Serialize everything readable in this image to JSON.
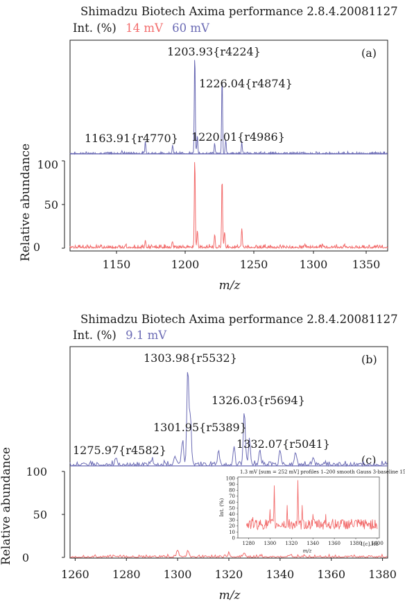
{
  "colors": {
    "blue": "#6a6ab4",
    "red": "#f26b6b",
    "axis": "#1a1a1a"
  },
  "panels": [
    {
      "header": "Shimadzu Biotech Axima performance 2.8.4.20081127",
      "int_label": "Int. (%)",
      "int_values": [
        {
          "text": "14 mV",
          "color": "red"
        },
        {
          "text": "60 mV",
          "color": "blue"
        }
      ],
      "panel_label": "(a)",
      "ylabel": "Relative abundance",
      "xlabel": "m/z",
      "ticks_y": [
        "100",
        "50",
        "0"
      ],
      "ticks_x": [
        "1150",
        "1200",
        "1250",
        "1300",
        "1350"
      ],
      "peak_labels": [
        "1203.93{r4224}",
        "1226.04{r4874}",
        "1163.91{r4770}",
        "1220.01{r4986}"
      ]
    },
    {
      "header": "Shimadzu Biotech Axima performance 2.8.4.20081127",
      "int_label": "Int. (%)",
      "int_values": [
        {
          "text": "9.1 mV",
          "color": "blue"
        }
      ],
      "panel_label": "(b)",
      "panel_label2": "(c)",
      "ylabel": "Relative abundance",
      "xlabel": "m/z",
      "ticks_y": [
        "100",
        "50",
        "0"
      ],
      "ticks_x": [
        "1260",
        "1280",
        "1300",
        "1320",
        "1340",
        "1360",
        "1380"
      ],
      "peak_labels": [
        "1303.98{r5532}",
        "1326.03{r5694}",
        "1301.95{r5389}",
        "1275.97{r4582}",
        "1332.07{r5041}"
      ],
      "inset": {
        "caption": "1.3 mV [sum = 252 mV] profiles 1–200 smooth Gauss 3-baseline 15",
        "ylabel": "Int. (%)",
        "xlabel": "m/z",
        "ticks_y": [
          "100",
          "90",
          "80",
          "70",
          "60",
          "50",
          "40",
          "30",
          "20",
          "10",
          "0"
        ],
        "ticks_x": [
          "1280",
          "1300",
          "1320",
          "1340",
          "1360",
          "1380",
          "1400"
        ],
        "footer": "1[c].H3"
      }
    }
  ],
  "chart_data": [
    {
      "type": "line",
      "title": "Shimadzu Biotech Axima performance 2.8.4.20081127",
      "xlabel": "m/z",
      "ylabel": "Relative abundance",
      "xlim": [
        1103,
        1360
      ],
      "ylim": [
        0,
        100
      ],
      "series": [
        {
          "peaks": [
            [
              1145,
              3
            ],
            [
              1163.91,
              12
            ],
            [
              1186,
              9
            ],
            [
              1203.93,
              100
            ],
            [
              1206,
              18
            ],
            [
              1220.01,
              10
            ],
            [
              1226.04,
              75
            ],
            [
              1229,
              14
            ],
            [
              1242,
              11
            ]
          ]
        },
        {
          "peaks": [
            [
              1148,
              4
            ],
            [
              1163.9,
              8
            ],
            [
              1186,
              7
            ],
            [
              1203.93,
              100
            ],
            [
              1206,
              20
            ],
            [
              1220,
              14
            ],
            [
              1226.04,
              80
            ],
            [
              1228,
              18
            ],
            [
              1242,
              22
            ],
            [
              1293,
              4
            ],
            [
              1325,
              4
            ]
          ]
        }
      ]
    },
    {
      "type": "line",
      "title": "Shimadzu Biotech Axima performance 2.8.4.20081127",
      "xlabel": "m/z",
      "ylabel": "Relative abundance",
      "xlim": [
        1258,
        1382
      ],
      "ylim": [
        0,
        100
      ],
      "series": [
        {
          "peaks": [
            [
              1275.97,
              8
            ],
            [
              1290,
              5
            ],
            [
              1299,
              10
            ],
            [
              1301.95,
              25
            ],
            [
              1303.98,
              100
            ],
            [
              1305,
              48
            ],
            [
              1316,
              14
            ],
            [
              1322,
              18
            ],
            [
              1326.03,
              57
            ],
            [
              1328,
              25
            ],
            [
              1332.07,
              16
            ],
            [
              1340,
              16
            ],
            [
              1346,
              14
            ],
            [
              1353,
              8
            ]
          ]
        },
        {
          "peaks": [
            [
              1300,
              8
            ],
            [
              1304,
              8
            ],
            [
              1320,
              4
            ],
            [
              1326,
              5
            ],
            [
              1344,
              3
            ]
          ]
        }
      ]
    },
    {
      "type": "line",
      "title": "1.3 mV [sum = 252 mV] profiles 1–200 smooth Gauss 3-baseline 15",
      "xlabel": "m/z",
      "ylabel": "Int. (%)",
      "xlim": [
        1270,
        1402
      ],
      "ylim": [
        0,
        100
      ],
      "series": [
        {
          "peaks": [
            [
              1276,
              30
            ],
            [
              1284,
              35
            ],
            [
              1300,
              48
            ],
            [
              1304,
              88
            ],
            [
              1316,
              55
            ],
            [
              1326,
              97
            ],
            [
              1330,
              55
            ],
            [
              1340,
              40
            ],
            [
              1352,
              40
            ],
            [
              1366,
              30
            ],
            [
              1380,
              28
            ]
          ]
        }
      ]
    }
  ]
}
